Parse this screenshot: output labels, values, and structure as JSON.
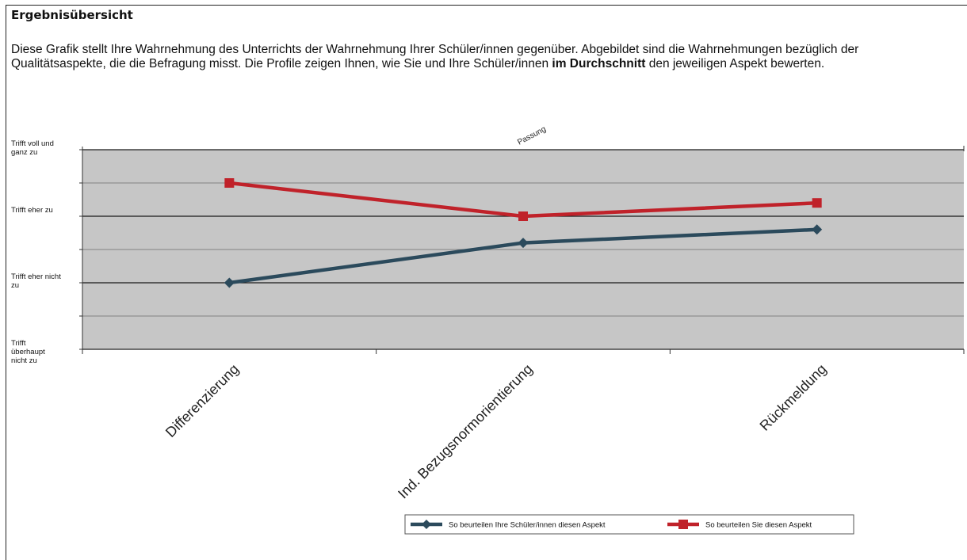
{
  "header": {
    "title": "Ergebnisübersicht",
    "intro_line1": "Diese Grafik stellt Ihre Wahrnehmung des Unterrichts der Wahrnehmung Ihrer Schüler/innen gegenüber. Abgebildet sind die Wahrnehmungen bezüglich der",
    "intro_line2_a": "Qualitätsaspekte, die die Befragung misst. Die Profile zeigen Ihnen, wie Sie und Ihre Schüler/innen ",
    "intro_line2_bold": "im Durchschnitt",
    "intro_line2_b": " den jeweiligen Aspekt bewerten."
  },
  "colors": {
    "plot_bg": "#c6c6c6",
    "students": "#2b4a5c",
    "teacher": "#c0222a"
  },
  "chart_data": {
    "type": "line",
    "title": "",
    "panel_label": "Passung",
    "categories": [
      "Differenzierung",
      "Ind. Bezugsnormorientierung",
      "Rückmeldung"
    ],
    "ylim": [
      1,
      4
    ],
    "y_ticks": [
      {
        "value": 4,
        "label_lines": [
          "Trifft voll und",
          "ganz zu"
        ]
      },
      {
        "value": 3,
        "label_lines": [
          "Trifft eher zu"
        ]
      },
      {
        "value": 2,
        "label_lines": [
          "Trifft eher nicht",
          "zu"
        ]
      },
      {
        "value": 1,
        "label_lines": [
          "Trifft",
          "überhaupt",
          "nicht zu"
        ]
      }
    ],
    "series": [
      {
        "name": "So beurteilen Ihre Schüler/innen diesen Aspekt",
        "marker": "diamond",
        "color_key": "students",
        "values": [
          2.0,
          2.6,
          2.8
        ]
      },
      {
        "name": "So beurteilen Sie diesen Aspekt",
        "marker": "square",
        "color_key": "teacher",
        "values": [
          3.5,
          3.0,
          3.2
        ]
      }
    ],
    "grid": true,
    "legend_position": "bottom-right"
  }
}
